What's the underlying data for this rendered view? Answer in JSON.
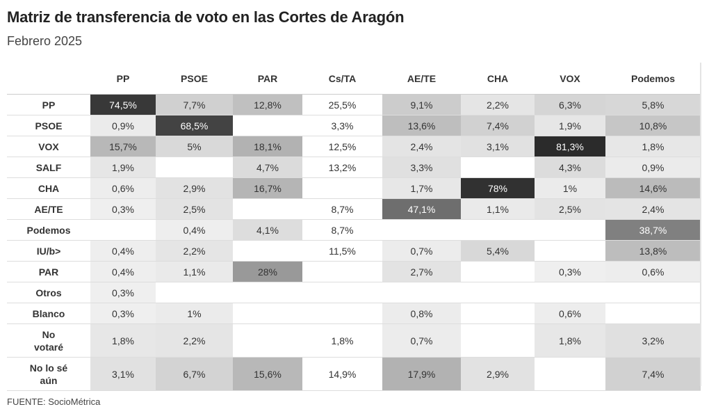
{
  "header": {
    "title": "Matriz de transferencia de voto en las Cortes de Aragón",
    "subtitle": "Febrero 2025"
  },
  "source": "FUENTE: SocioMétrica",
  "chart_data": {
    "type": "heatmap",
    "value_format": "percent",
    "shading_colors": {
      "low": "#f2f2f2",
      "high": "#2a2a2a"
    },
    "columns": [
      {
        "label": "PP",
        "shaded": true
      },
      {
        "label": "PSOE",
        "shaded": true
      },
      {
        "label": "PAR",
        "shaded": true
      },
      {
        "label": "Cs/TA",
        "shaded": false
      },
      {
        "label": "AE/TE",
        "shaded": true
      },
      {
        "label": "CHA",
        "shaded": true
      },
      {
        "label": "VOX",
        "shaded": true
      },
      {
        "label": "Podemos",
        "shaded": true
      }
    ],
    "rows": [
      {
        "label": "PP",
        "values": [
          "74,5%",
          "7,7%",
          "12,8%",
          "25,5%",
          "9,1%",
          "2,2%",
          "6,3%",
          "5,8%"
        ]
      },
      {
        "label": "PSOE",
        "values": [
          "0,9%",
          "68,5%",
          "",
          "3,3%",
          "13,6%",
          "7,4%",
          "1,9%",
          "10,8%"
        ]
      },
      {
        "label": "VOX",
        "values": [
          "15,7%",
          "5%",
          "18,1%",
          "12,5%",
          "2,4%",
          "3,1%",
          "81,3%",
          "1,8%"
        ]
      },
      {
        "label": "SALF",
        "values": [
          "1,9%",
          "",
          "4,7%",
          "13,2%",
          "3,3%",
          "",
          "4,3%",
          "0,9%"
        ]
      },
      {
        "label": "CHA",
        "values": [
          "0,6%",
          "2,9%",
          "16,7%",
          "",
          "1,7%",
          "78%",
          "1%",
          "14,6%"
        ]
      },
      {
        "label": "AE/TE",
        "values": [
          "0,3%",
          "2,5%",
          "",
          "8,7%",
          "47,1%",
          "1,1%",
          "2,5%",
          "2,4%"
        ]
      },
      {
        "label": "Podemos",
        "values": [
          "",
          "0,4%",
          "4,1%",
          "8,7%",
          "",
          "",
          "",
          "38,7%"
        ]
      },
      {
        "label": "IU/b>",
        "values": [
          "0,4%",
          "2,2%",
          "",
          "11,5%",
          "0,7%",
          "5,4%",
          "",
          "13,8%"
        ]
      },
      {
        "label": "PAR",
        "values": [
          "0,4%",
          "1,1%",
          "28%",
          "",
          "2,7%",
          "",
          "0,3%",
          "0,6%"
        ]
      },
      {
        "label": "Otros",
        "values": [
          "0,3%",
          "",
          "",
          "",
          "",
          "",
          "",
          ""
        ]
      },
      {
        "label": "Blanco",
        "values": [
          "0,3%",
          "1%",
          "",
          "",
          "0,8%",
          "",
          "0,6%",
          ""
        ]
      },
      {
        "label": "No votaré",
        "values": [
          "1,8%",
          "2,2%",
          "",
          "1,8%",
          "0,7%",
          "",
          "1,8%",
          "3,2%"
        ]
      },
      {
        "label": "No lo sé aún",
        "values": [
          "3,1%",
          "6,7%",
          "15,6%",
          "14,9%",
          "17,9%",
          "2,9%",
          "",
          "7,4%"
        ]
      }
    ]
  }
}
